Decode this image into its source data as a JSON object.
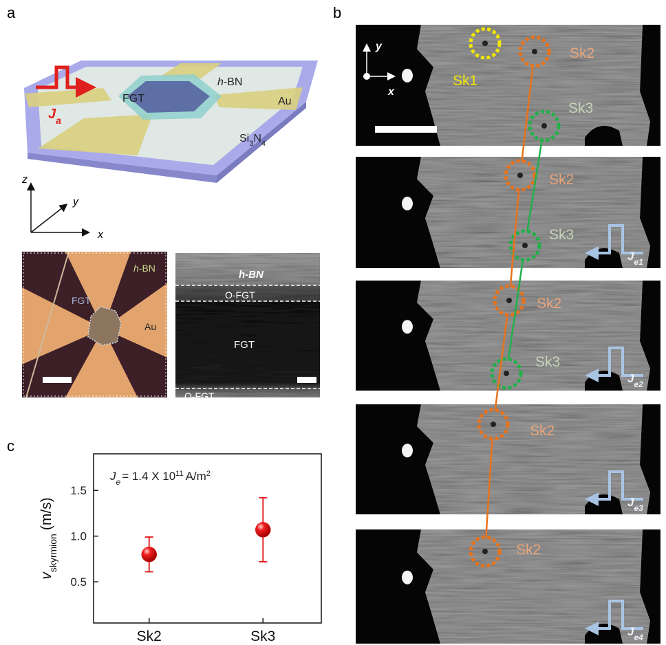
{
  "panel_labels": {
    "a": "a",
    "b": "b",
    "c": "c"
  },
  "schematic": {
    "pulse_label": [
      "J",
      "a"
    ],
    "flake": "FGT",
    "hbn": [
      "h",
      "-BN"
    ],
    "electrode": "Au",
    "substrate": [
      "Si",
      "3",
      "N",
      "4"
    ],
    "axes": {
      "z": "z",
      "y": "y",
      "x": "x"
    }
  },
  "optical_image": {
    "hbn": [
      "h",
      "-BN"
    ],
    "flake": "FGT",
    "electrode": "Au"
  },
  "cross_section": {
    "top": "h-BN",
    "upper_oxide": "O-FGT",
    "core": "FGT",
    "lower_oxide": "O-FGT"
  },
  "kerr_images": {
    "axes": {
      "y": "y",
      "x": "x"
    },
    "frames": [
      {
        "skyrmions": [
          "Sk1",
          "Sk2",
          "Sk3"
        ]
      },
      {
        "skyrmions": [
          "Sk2",
          "Sk3"
        ],
        "pulse": [
          "J",
          "e1"
        ]
      },
      {
        "skyrmions": [
          "Sk2",
          "Sk3"
        ],
        "pulse": [
          "J",
          "e2"
        ]
      },
      {
        "skyrmions": [
          "Sk2"
        ],
        "pulse": [
          "J",
          "e3"
        ]
      },
      {
        "skyrmions": [
          "Sk2"
        ],
        "pulse": [
          "J",
          "e4"
        ]
      }
    ]
  },
  "chart_data": {
    "type": "errorbar",
    "ylabel": [
      "v",
      "skyrmion",
      "(m/s)"
    ],
    "annotation": [
      "J",
      "e",
      "= 1.4 X 10",
      "11",
      "A/m",
      "2"
    ],
    "categories": [
      "Sk2",
      "Sk3"
    ],
    "values": [
      0.8,
      1.07
    ],
    "errors": [
      0.19,
      0.35
    ],
    "color": "#e01414",
    "ylim": [
      0.05,
      1.9
    ],
    "yticks": [
      0.5,
      {
        "value": 1,
        "label": "1.0"
      },
      1.5
    ]
  }
}
